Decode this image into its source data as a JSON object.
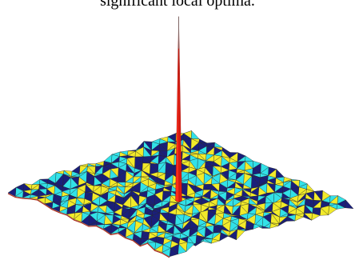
{
  "caption": "significant local optima.",
  "chart_data": {
    "type": "surface",
    "description_text": "",
    "grid": {
      "rows": 22,
      "cols": 22
    },
    "surface_colors": [
      "#32e1e8",
      "#f2ea2a",
      "#1a1f7a",
      "#c8c8c8",
      "#c0392b"
    ],
    "peak": {
      "row": 11,
      "col": 11,
      "relative_height": 1.0,
      "color": "#e01a10"
    },
    "noise_relative_height": 0.04
  }
}
